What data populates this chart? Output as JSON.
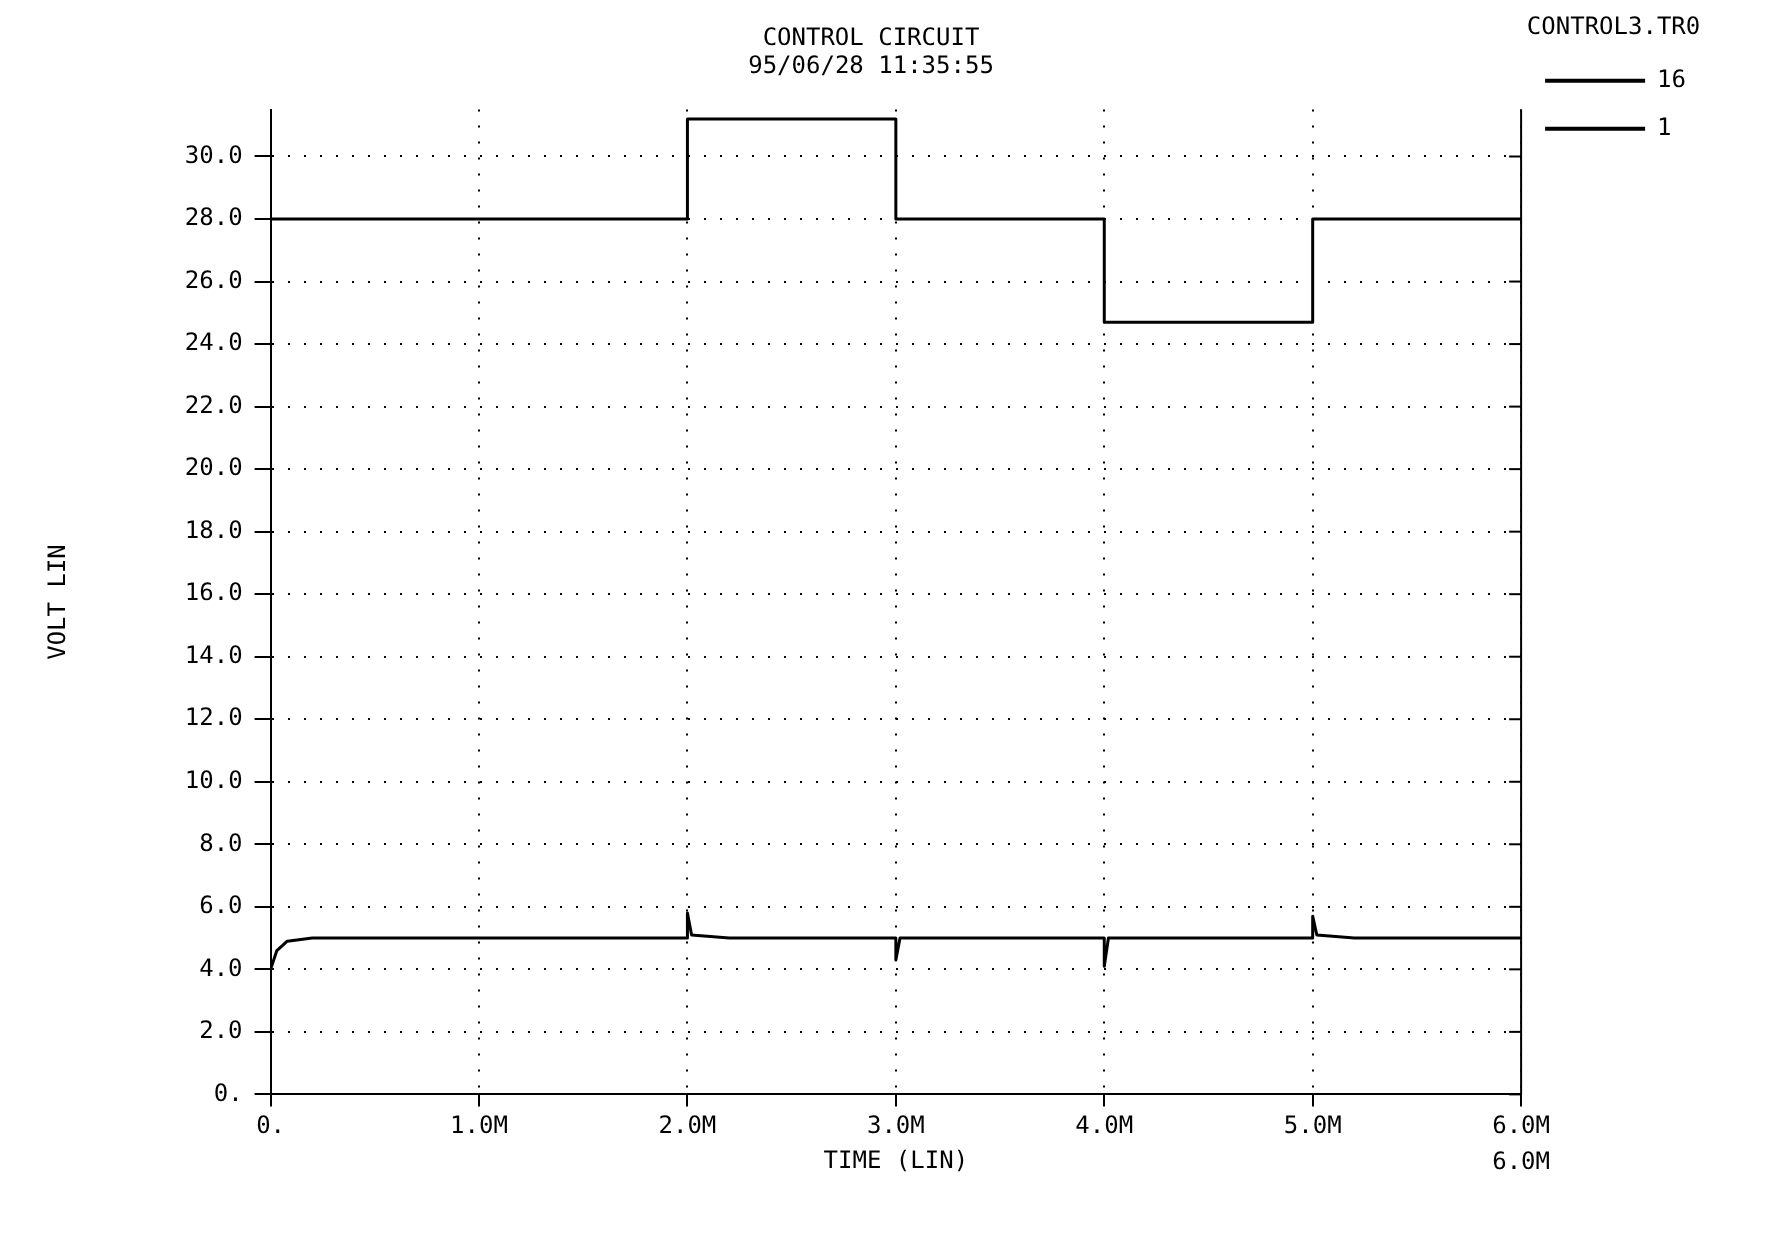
{
  "chart_data": {
    "type": "line",
    "title": "CONTROL CIRCUIT",
    "subtitle": "95/06/28 11:35:55",
    "xlabel": "TIME (LIN)",
    "ylabel": "VOLT LIN",
    "legend_title": "CONTROL3.TR0",
    "series": [
      {
        "name": "16",
        "color": "#000000",
        "x": [
          0,
          0.03,
          0.08,
          0.2,
          2.0,
          2.0,
          2.02,
          2.2,
          3.0,
          3.0,
          3.02,
          4.0,
          4.0,
          4.02,
          5.0,
          5.0,
          5.02,
          5.2,
          6.0
        ],
        "values": [
          4.0,
          4.6,
          4.9,
          5.0,
          5.0,
          5.8,
          5.1,
          5.0,
          5.0,
          4.3,
          5.0,
          5.0,
          4.1,
          5.0,
          5.0,
          5.7,
          5.1,
          5.0,
          5.0
        ]
      },
      {
        "name": "1",
        "color": "#000000",
        "x": [
          0,
          2.0,
          2.0,
          3.0,
          3.0,
          4.0,
          4.0,
          5.0,
          5.0,
          6.0
        ],
        "values": [
          28.0,
          28.0,
          31.2,
          31.2,
          28.0,
          28.0,
          24.7,
          24.7,
          28.0,
          28.0
        ]
      }
    ],
    "xlim": [
      0,
      6
    ],
    "xticks": [
      {
        "value": 0,
        "label": "0."
      },
      {
        "value": 1,
        "label": "1.0M"
      },
      {
        "value": 2,
        "label": "2.0M"
      },
      {
        "value": 3,
        "label": "3.0M"
      },
      {
        "value": 4,
        "label": "4.0M"
      },
      {
        "value": 5,
        "label": "5.0M"
      },
      {
        "value": 6,
        "label": "6.0M"
      }
    ],
    "ylim": [
      0,
      31.5
    ],
    "yticks": [
      {
        "value": 0,
        "label": "0."
      },
      {
        "value": 2,
        "label": "2.0"
      },
      {
        "value": 4,
        "label": "4.0"
      },
      {
        "value": 6,
        "label": "6.0"
      },
      {
        "value": 8,
        "label": "8.0"
      },
      {
        "value": 10,
        "label": "10.0"
      },
      {
        "value": 12,
        "label": "12.0"
      },
      {
        "value": 14,
        "label": "14.0"
      },
      {
        "value": 16,
        "label": "16.0"
      },
      {
        "value": 18,
        "label": "18.0"
      },
      {
        "value": 20,
        "label": "20.0"
      },
      {
        "value": 22,
        "label": "22.0"
      },
      {
        "value": 24,
        "label": "24.0"
      },
      {
        "value": 26,
        "label": "26.0"
      },
      {
        "value": 28,
        "label": "28.0"
      },
      {
        "value": 30,
        "label": "30.0"
      }
    ],
    "grid": true,
    "legend": "right",
    "annotations": [
      "6.0M"
    ]
  }
}
